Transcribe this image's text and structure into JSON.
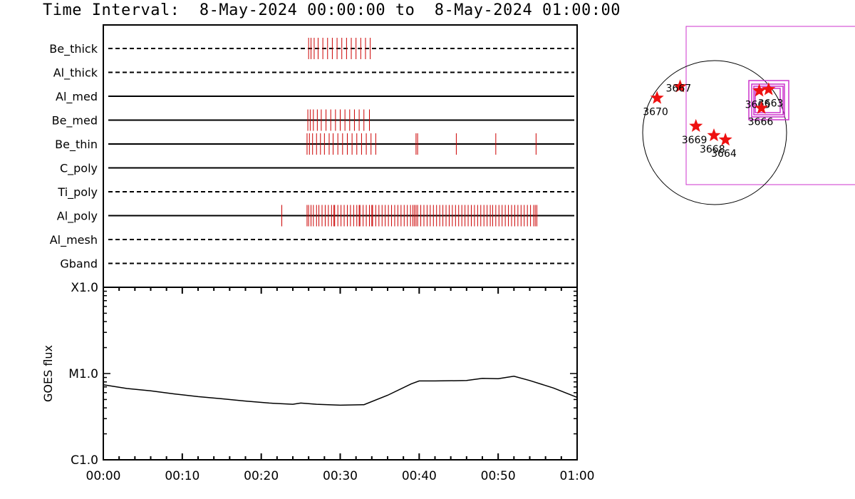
{
  "title": "Time Interval:  8-May-2024 00:00:00 to  8-May-2024 01:00:00",
  "colors": {
    "axis": "#000000",
    "event": "#cc0000",
    "box": "#cc33cc",
    "star": "#ee1111"
  },
  "chart_data": [
    {
      "type": "table",
      "name": "filter-timeline",
      "x_unit": "minutes",
      "xlim": [
        0,
        60
      ],
      "channels": [
        {
          "label": "Be_thick",
          "style": "dashed",
          "events": [
            26.0,
            26.3,
            26.7,
            27.2,
            27.8,
            28.4,
            29.0,
            29.6,
            30.2,
            30.8,
            31.4,
            32.0,
            32.6,
            33.2,
            33.8
          ]
        },
        {
          "label": "Al_thick",
          "style": "dashed",
          "events": []
        },
        {
          "label": "Al_med",
          "style": "solid",
          "events": []
        },
        {
          "label": "Be_med",
          "style": "solid",
          "events": [
            25.9,
            26.2,
            26.6,
            27.1,
            27.6,
            28.2,
            28.8,
            29.4,
            30.0,
            30.6,
            31.2,
            31.8,
            32.4,
            33.0,
            33.7
          ]
        },
        {
          "label": "Be_thin",
          "style": "solid",
          "events": [
            25.8,
            26.1,
            26.5,
            27.0,
            27.5,
            28.0,
            28.6,
            29.1,
            29.7,
            30.3,
            30.9,
            31.5,
            32.1,
            32.7,
            33.3,
            33.9,
            34.5,
            39.6,
            39.8,
            44.7,
            49.7,
            54.8
          ]
        },
        {
          "label": "C_poly",
          "style": "solid",
          "events": []
        },
        {
          "label": "Ti_poly",
          "style": "dashed",
          "events": []
        },
        {
          "label": "Al_poly",
          "style": "solid",
          "events": [
            22.6,
            25.8,
            26.0,
            26.3,
            26.6,
            27.0,
            27.3,
            27.7,
            28.1,
            28.5,
            28.9,
            29.2,
            29.3,
            29.7,
            30.1,
            30.5,
            30.9,
            31.3,
            31.7,
            32.1,
            32.4,
            32.5,
            32.9,
            33.3,
            33.7,
            34.0,
            34.1,
            34.5,
            34.9,
            35.3,
            35.7,
            36.1,
            36.5,
            36.9,
            37.3,
            37.7,
            38.1,
            38.5,
            38.9,
            39.2,
            39.4,
            39.6,
            39.8,
            40.2,
            40.6,
            41.0,
            41.4,
            41.8,
            42.2,
            42.6,
            43.0,
            43.4,
            43.8,
            44.2,
            44.6,
            45.0,
            45.4,
            45.8,
            46.2,
            46.6,
            47.0,
            47.4,
            47.8,
            48.2,
            48.6,
            49.0,
            49.3,
            49.7,
            50.1,
            50.5,
            50.9,
            51.3,
            51.7,
            52.1,
            52.5,
            52.9,
            53.3,
            53.7,
            54.1,
            54.5,
            54.7,
            54.9
          ]
        },
        {
          "label": "Al_mesh",
          "style": "dashed",
          "events": []
        },
        {
          "label": "Gband",
          "style": "dashed",
          "events": []
        }
      ]
    },
    {
      "type": "line",
      "name": "goes-flux",
      "ylabel": "GOES flux",
      "y_scale": "log",
      "y_ticks": [
        "X1.0",
        "M1.0",
        "C1.0"
      ],
      "x_ticks": [
        "00:00",
        "00:10",
        "00:20",
        "00:30",
        "00:40",
        "00:50",
        "01:00"
      ],
      "xlim": [
        0,
        60
      ],
      "ylim": [
        1e-06,
        0.0001
      ],
      "x": [
        0,
        3,
        6,
        9,
        12,
        15,
        18,
        21,
        24,
        25,
        27,
        30,
        33,
        36,
        39,
        40,
        42,
        46,
        48,
        50,
        51,
        52,
        54,
        57,
        60
      ],
      "y": [
        7.4e-06,
        6.7e-06,
        6.3e-06,
        5.8e-06,
        5.4e-06,
        5.1e-06,
        4.8e-06,
        4.55e-06,
        4.4e-06,
        4.55e-06,
        4.4e-06,
        4.3e-06,
        4.35e-06,
        5.6e-06,
        7.6e-06,
        8.2e-06,
        8.2e-06,
        8.3e-06,
        8.8e-06,
        8.7e-06,
        9e-06,
        9.3e-06,
        8.3e-06,
        6.8e-06,
        5.3e-06
      ]
    },
    {
      "type": "scatter",
      "name": "solar-disk-map",
      "regions": [
        {
          "id": "3670",
          "x": -0.8,
          "y": 0.48
        },
        {
          "id": "3667",
          "x": -0.48,
          "y": 0.64
        },
        {
          "id": "3669",
          "x": -0.26,
          "y": 0.09
        },
        {
          "id": "3668",
          "x": -0.01,
          "y": -0.04
        },
        {
          "id": "3664",
          "x": 0.15,
          "y": -0.1
        },
        {
          "id": "3665",
          "x": 0.62,
          "y": 0.58
        },
        {
          "id": "3663",
          "x": 0.75,
          "y": 0.6
        },
        {
          "id": "3666",
          "x": 0.65,
          "y": 0.34
        }
      ]
    }
  ]
}
